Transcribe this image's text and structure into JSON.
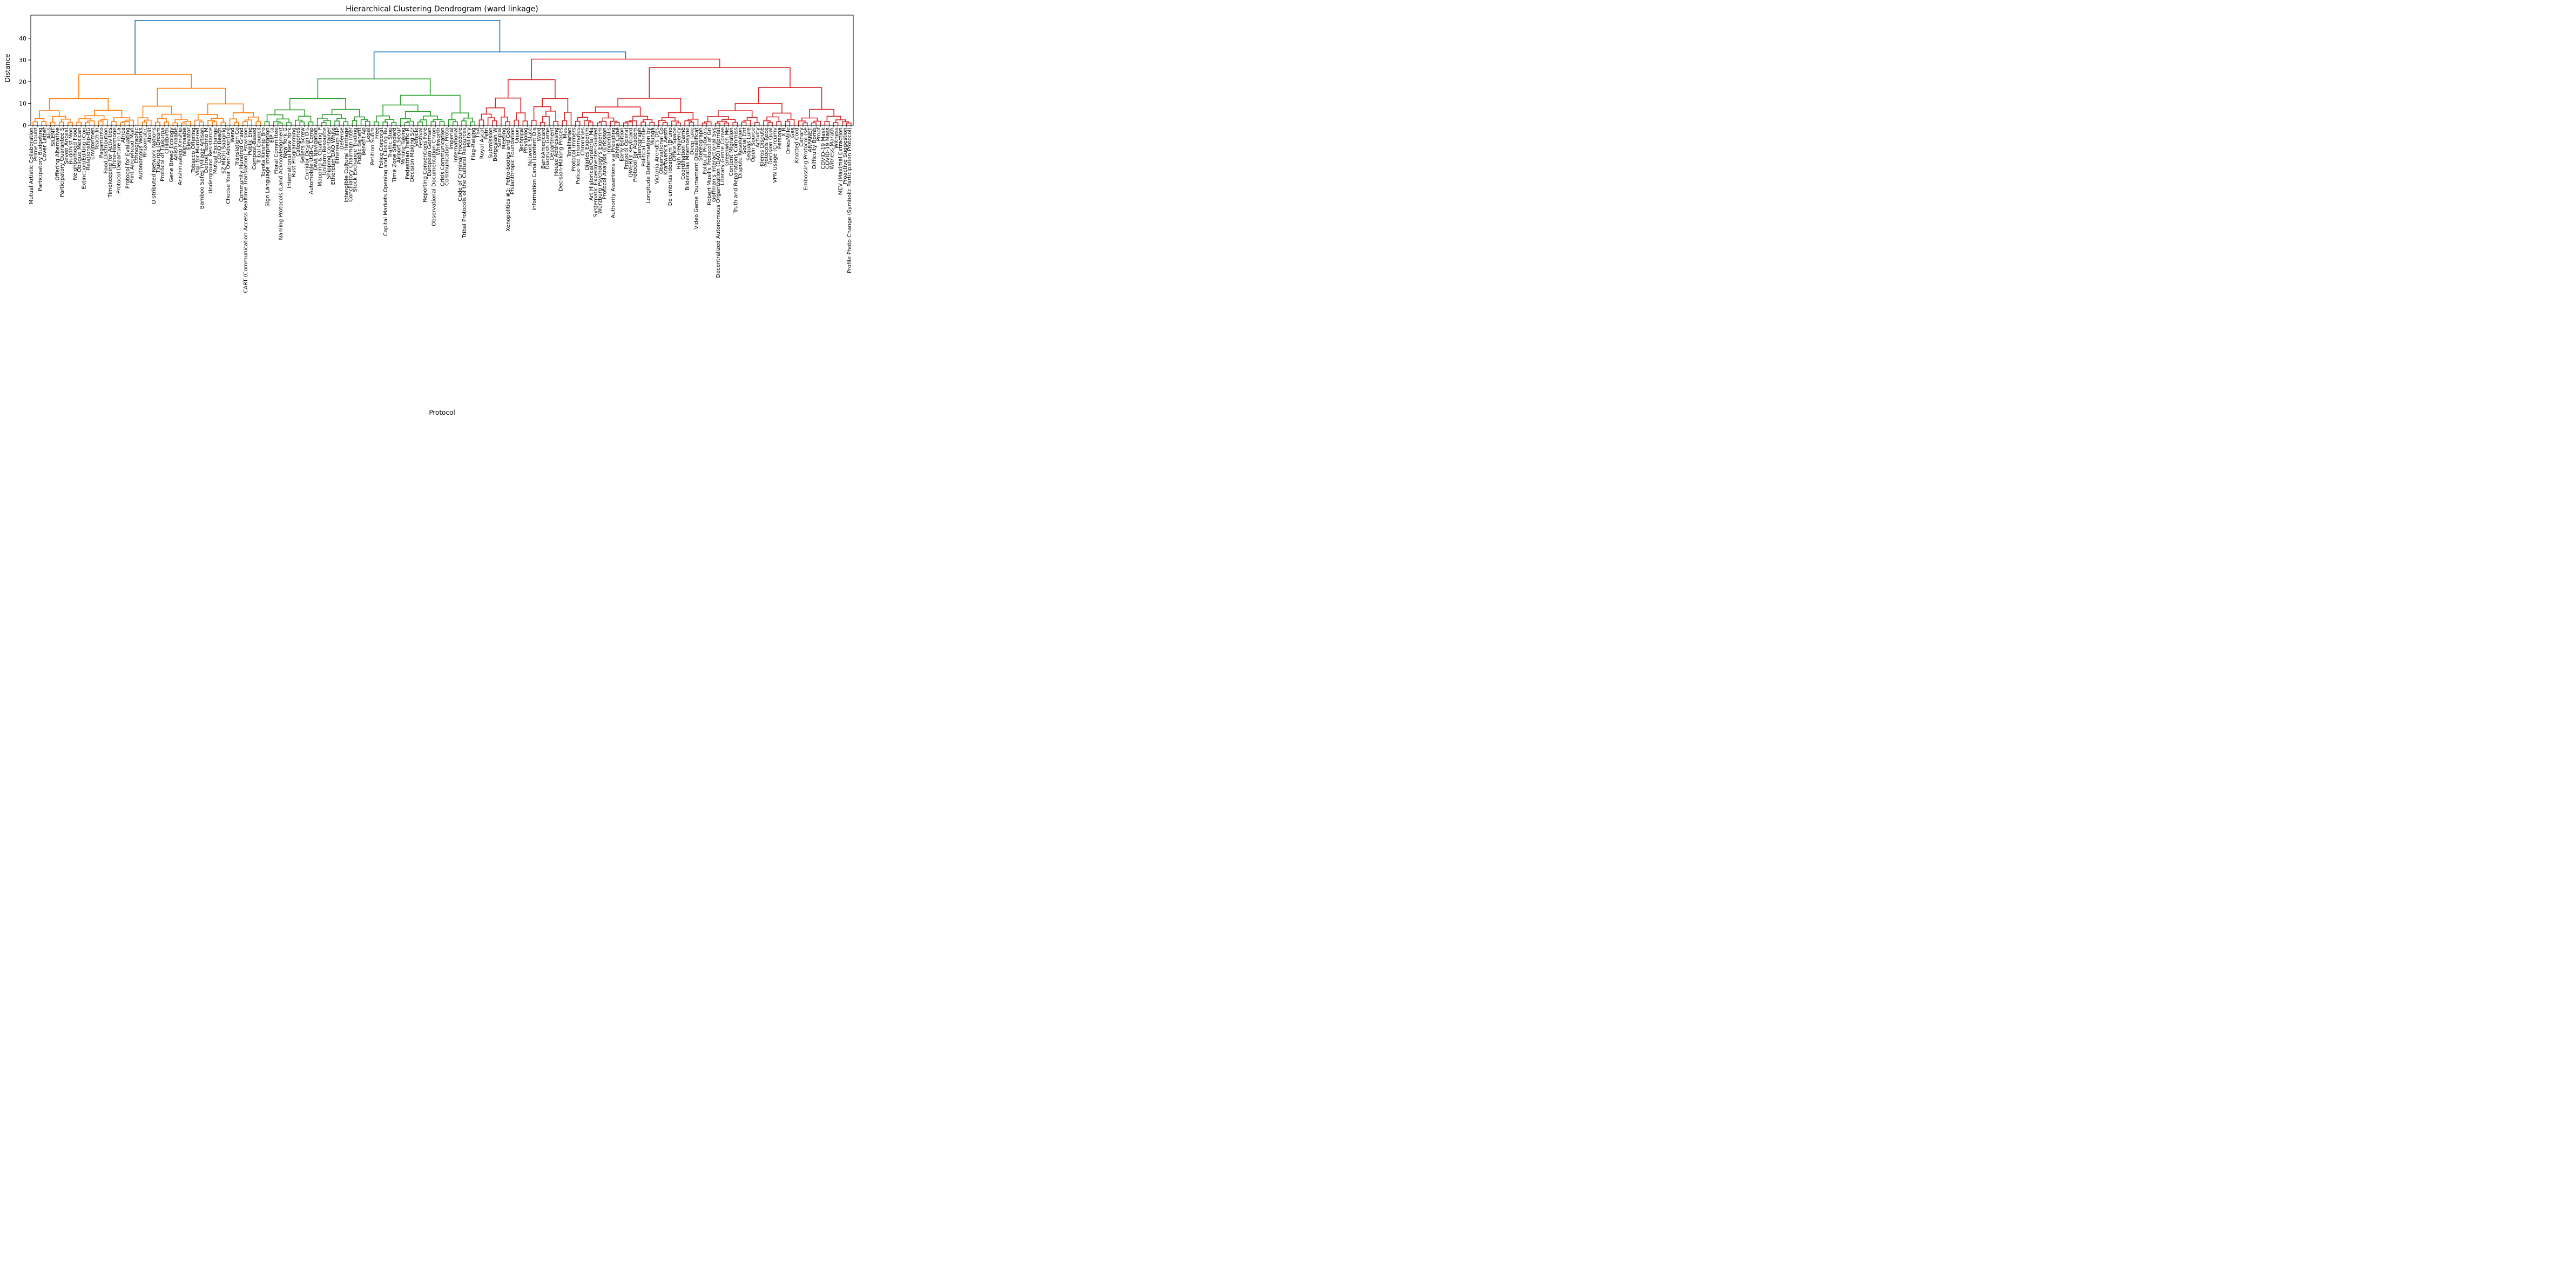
{
  "chart_data": {
    "type": "dendrogram",
    "title": "Hierarchical Clustering Dendrogram (ward linkage)",
    "xlabel": "Protocol",
    "ylabel": "Distance",
    "linkage": "ward",
    "ylim": [
      0,
      50.5
    ],
    "yticks": [
      0,
      10,
      20,
      30,
      40
    ],
    "grid": false,
    "legend": null,
    "colors": {
      "top_links": "#1f77b4",
      "cluster_1": "#ff7f0e",
      "cluster_2": "#2ca02c",
      "cluster_3": "#d62728",
      "axis": "#000000",
      "text": "#000000"
    },
    "top_links": [
      {
        "distance": 48.2,
        "color": "#1f77b4",
        "joins": [
          "cluster_1",
          "node_cluster_2_plus_cluster_3"
        ]
      },
      {
        "distance": 33.7,
        "color": "#1f77b4",
        "joins": [
          "cluster_2",
          "cluster_3"
        ]
      }
    ],
    "leaf_label_note": "x tick labels are rotated 90 degrees and heavily overlap; only partially legible strings are recorded, in left-to-right order",
    "clusters": [
      {
        "name": "cluster_1",
        "color": "#ff7f0e",
        "root_distance": 23.4,
        "child_distances": [
          12.2,
          17.0
        ],
        "split_fraction": 0.45,
        "leaf_labels": [
          "Mutual Artistic Collaboration",
          "Prime Doubt",
          "Participatory Budgeting",
          "Cover Letter",
          "Alus",
          "SILENT",
          "Offering Alternative",
          "Participatory Guarantee S",
          "Seven Ancest",
          "Buddhist Mon",
          "Neighborhood Food",
          "Oblique Mexican",
          "Extinction/Editing (Con",
          "Relationship-BG",
          "Environmen",
          "Teach-In",
          "Pagamento",
          "Food Distribution",
          "Timekeeping for Activities",
          "Urine-Hormone",
          "Protocol Departure in Ca",
          "Africa",
          "Protocol for Evaluating",
          "Flint Arrowhead Man",
          "Ethnographic",
          "Autonomous Works",
          "Rhizomatic",
          "Abolit",
          "Distributed Network Nations",
          "Tjukurpa (Dream",
          "Protocol of Tjukurpa",
          "Childbirth",
          "Gene Breed Ecology",
          "Anishinaabe",
          "Anishinaabeg Kinship",
          "Nishnaabe",
          "Elevator",
          "Tobacco Offering",
          "Vigil for Murdered",
          "Bamboo Safes (Village Artisan",
          "Detroit Techno M",
          "Underground Resistance",
          "Mutual Exchange",
          "COVID Beach",
          "SZ Michi Saagnig",
          "Choose Your Own Adventure",
          "Wend",
          "Translation Co",
          "Community Hundred Grand",
          "CART (Communication Access Realtime Translation) Provision",
          "Public Ene",
          "Compost-Based",
          "Tribal Council"
        ]
      },
      {
        "name": "cluster_2",
        "color": "#2ca02c",
        "root_distance": 21.3,
        "child_distances": [
          12.3,
          13.8
        ],
        "split_fraction": 0.5,
        "leaf_labels": [
          "Toyota Kinship Bro",
          "Sign Language Interpretation",
          "EIP (a",
          "Floral Committee",
          "Naming Protocols (Land Acknowledgment",
          "New York G",
          "International New York",
          "Rust Programming",
          "Categories",
          "Sellers Screw",
          "Corridor Design Dis",
          "Automobile USB-C Comp",
          "DNA Navigation",
          "Mapping & Charting P",
          "Uniform Resource",
          "Shipping Container",
          "Ethereum DAO White",
          "Ethereum EIP",
          "Defense",
          "Intangible Cultural Heritage",
          "Conciliatory Chairman Inter",
          "Stock Exchange Trading",
          "Public Benefit",
          "Benefit Ap",
          "Legal",
          "Petition Subm",
          "Free",
          "Police Corporat",
          "Capital Markets Opening and Closing Bu",
          "Traffic Stop",
          "Time Zone Standard",
          "Airport Secur",
          "Minute Taking",
          "Pedestrian Traffic R",
          "Decision Making Scr",
          "Vehicle",
          "Festival",
          "Reporting Conventions Fore",
          "European German",
          "Observational Documentation Chron",
          "Whitworth",
          "Crisis Communication",
          "Communication Proto",
          "Imperial",
          "International",
          "Code of Criminal Procedure",
          "Tribal Protocols of the Cultural Resources",
          "Military",
          "Flag-Raising"
        ]
      },
      {
        "name": "cluster_3",
        "color": "#d62728",
        "root_distance": 30.4,
        "child_distances": [
          21.0,
          26.5
        ],
        "split_fraction": 0.25,
        "leaf_labels": [
          "TSA",
          "Royal Ascot",
          "Petri",
          "Submission",
          "Borgesian W",
          "Simplal",
          "Meeting",
          "Xenopolitics #1: Petro-bodies and Geo",
          "Philanthropic Foundation",
          "Union",
          "Technical",
          "Physiolog",
          "Network State",
          "Information Canal (content Dis",
          "Word",
          "BankAmericard",
          "Diagrush Game",
          "Department",
          "House Addressing",
          "Decision-Making Proces",
          "Mas",
          "Totalitarian",
          "Protocol Immers",
          "Police-led Informates",
          "Chronicles",
          "Diaries Experim",
          "Art Historical/Curatorial Ma",
          "Systematic Experimenter-Guided",
          "Würzburg Psychology's Experim",
          "Protocol Analysis (Ericsson",
          "Imperialis",
          "Authority Assertions via Presiding",
          "White Cube",
          "Early Edition",
          "Protocol Operat",
          "QWERTY Keyboard",
          "Protocol for Academ",
          "Stenograph",
          "Political Thrille",
          "Longitude Determination by",
          "Munga",
          "Victoria Arendt's Des",
          "Observational Co",
          "Kraftwerk's Aesth",
          "De umbrias ideareum (Bruno",
          "Office Space",
          "High Frequency",
          "Coordination Game",
          "Bilderatlas Mnemosyne",
          "Deep fake",
          "Video Game Tournament Disqualificat",
          "Stereograph",
          "Political Protocols",
          "Robert Musil's Protocol of Gri",
          "Goffman's Interactional Sys",
          "Decentralized Autonomous Organization (DAO) Internat",
          "Literary Genre Conve",
          "Greenwich Me",
          "Content Migration",
          "Truth and Reparations Commiss",
          "Dispute Resolution",
          "Social Ent",
          "Sequas Lure",
          "Open Source",
          "Activity",
          "Kleros Dispute",
          "Protocols Rece",
          "Decision Qual",
          "VPN Usage (Circumv",
          "Persona",
          "X R",
          "DriesMille",
          "Gas",
          "Knotted Cord",
          "Canary",
          "Embossing Protocol (se",
          "ARPANET",
          "Difficulty Bomb",
          "Proof",
          "COVID-19 Mask",
          "COVID-19 Mass",
          "Witness Marath",
          "Witness",
          "MEV (Maximal Extraction",
          "Proactive Suggestion",
          "Profile Photo Change (Symbolic Participation Protocol)"
        ]
      }
    ]
  }
}
